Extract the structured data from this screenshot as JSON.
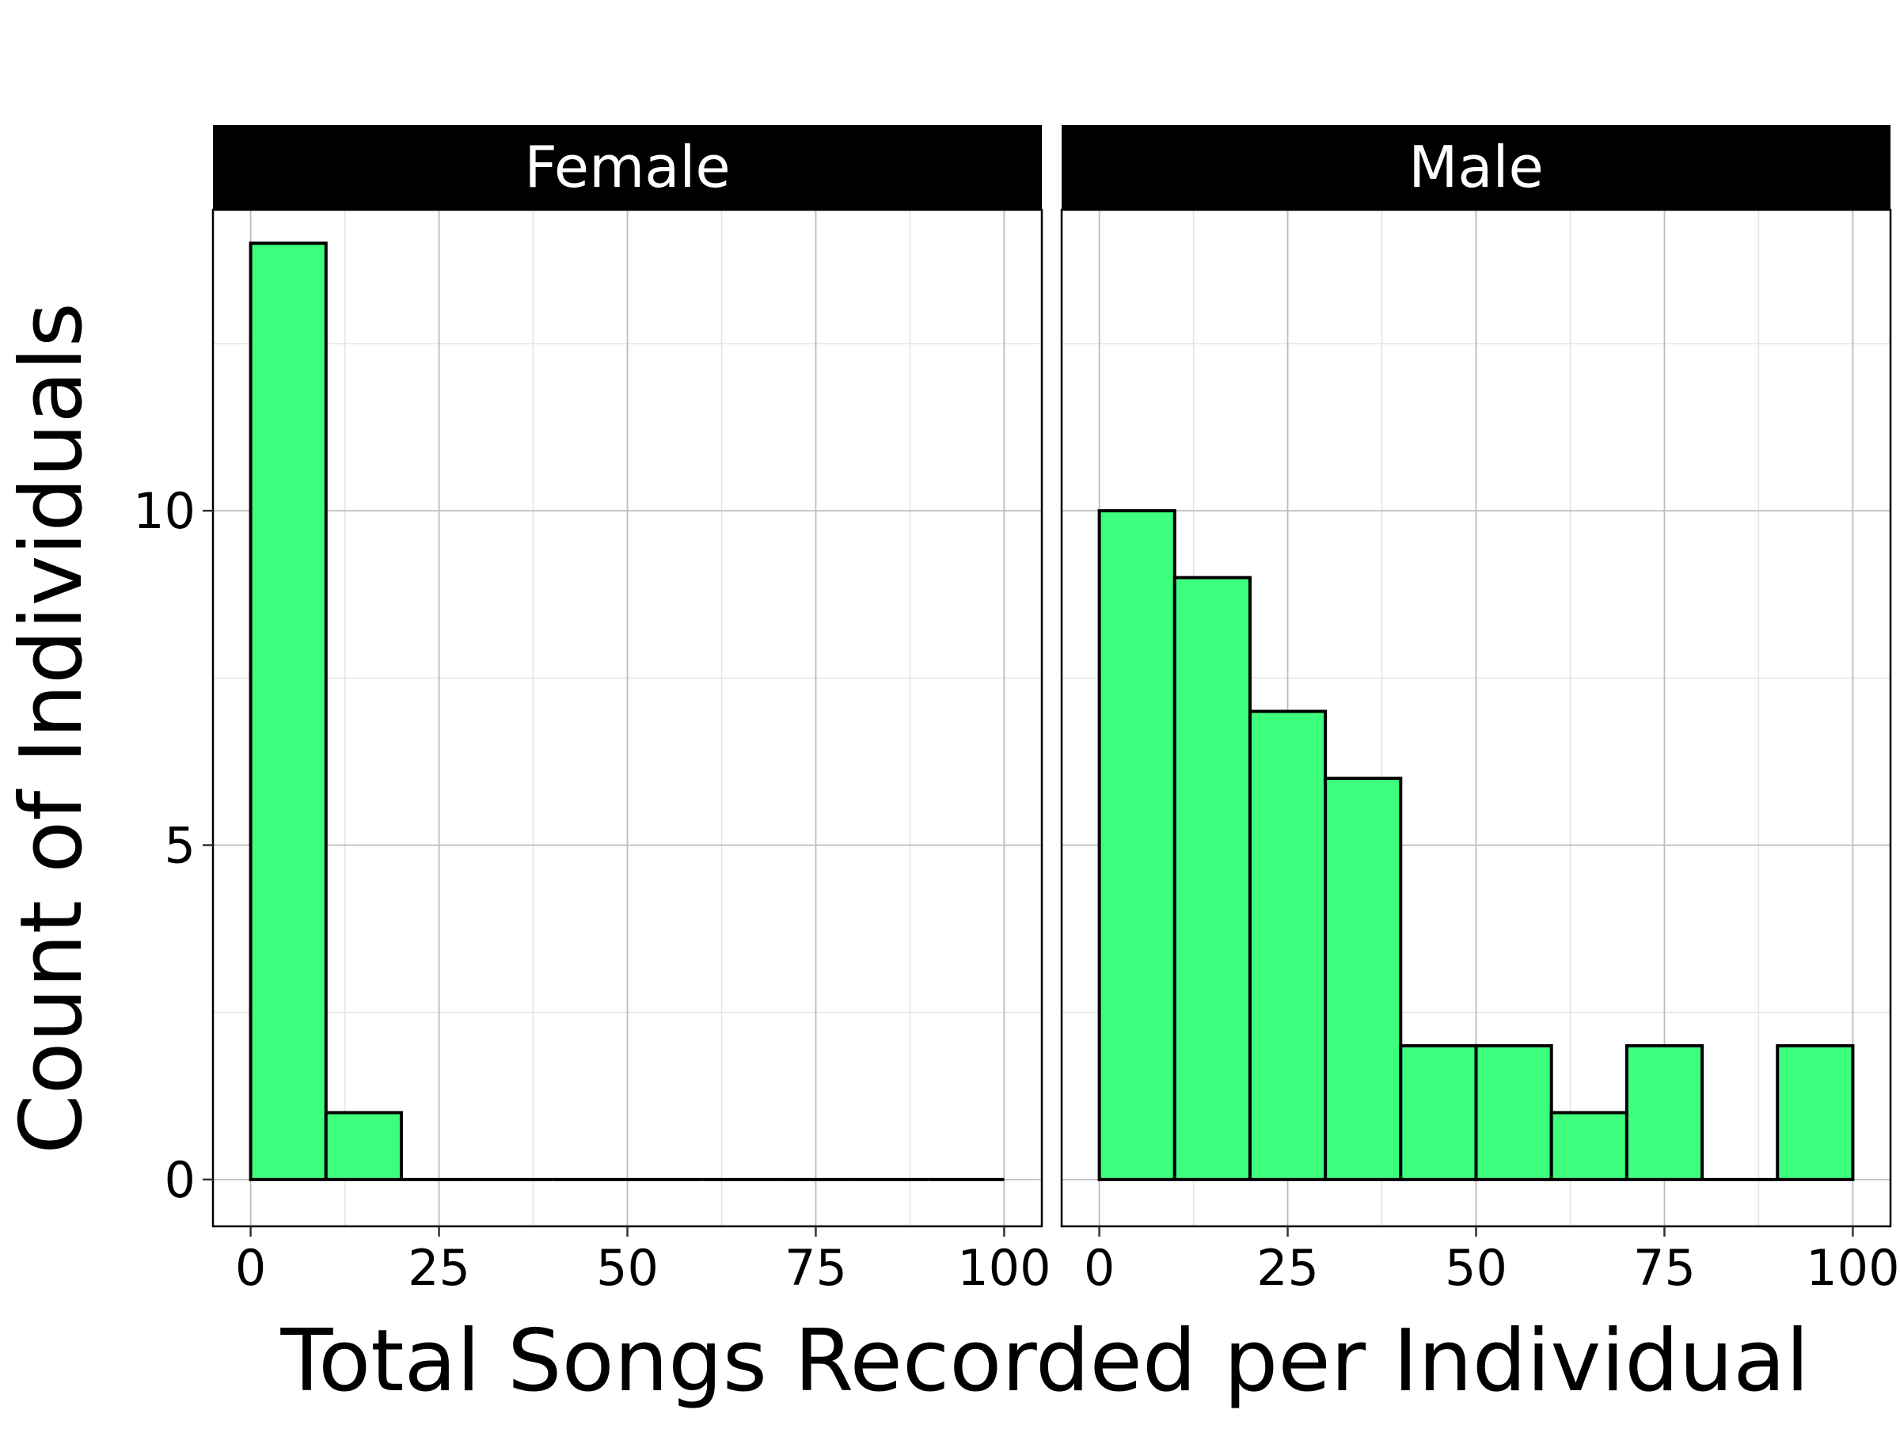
{
  "chart_data": {
    "type": "bar",
    "subtype": "faceted-histogram",
    "xlabel": "Total Songs Recorded per Individual",
    "ylabel": "Count of Individuals",
    "xlim": [
      -5,
      105
    ],
    "ylim": [
      -0.7,
      14.5
    ],
    "x_ticks": [
      0,
      25,
      50,
      75,
      100
    ],
    "y_ticks": [
      0,
      5,
      10
    ],
    "x_minor_grid": [
      12.5,
      37.5,
      62.5,
      87.5
    ],
    "y_minor_grid": [
      2.5,
      7.5,
      12.5
    ],
    "bin_width": 10,
    "bin_starts": [
      0,
      10,
      20,
      30,
      40,
      50,
      60,
      70,
      80,
      90
    ],
    "grid": true,
    "legend": "none",
    "bar_fill": "#3dff7d",
    "bar_stroke": "#000000",
    "strip_fill": "#000000",
    "strip_text_color": "#ffffff",
    "facets": [
      {
        "name": "Female",
        "values": [
          14,
          1,
          0,
          0,
          0,
          0,
          0,
          0,
          0,
          0
        ]
      },
      {
        "name": "Male",
        "values": [
          10,
          9,
          7,
          6,
          2,
          2,
          1,
          2,
          0,
          2
        ]
      }
    ]
  }
}
